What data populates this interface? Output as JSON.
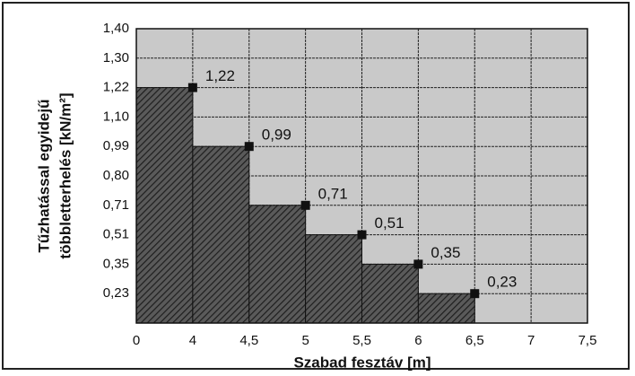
{
  "chart_data": {
    "type": "step",
    "y_label_lines": [
      "Tűzhatással egyidejű",
      "többletterhelés [kN/m²]"
    ],
    "x_label": "Szabad fesztáv [m]",
    "x": [
      4,
      4.5,
      5,
      5.5,
      6,
      6.5
    ],
    "values": [
      1.22,
      0.99,
      0.71,
      0.51,
      0.35,
      0.23
    ],
    "value_labels": [
      "1,22",
      "0,99",
      "0,71",
      "0,51",
      "0,35",
      "0,23"
    ],
    "color": "#4a4a4a",
    "xlim": [
      0,
      7.5
    ],
    "xticks": [
      0,
      4,
      {
        "value": 4.5,
        "label": "4,5"
      },
      5,
      {
        "value": 5.5,
        "label": "5,5"
      },
      6,
      {
        "value": 6.5,
        "label": "6,5"
      },
      7,
      {
        "value": 7.5,
        "label": "7,5"
      }
    ],
    "ylim": [
      0,
      1.4
    ],
    "yticks": [
      {
        "value": 0.23,
        "label": "0,23"
      },
      {
        "value": 0.35,
        "label": "0,35"
      },
      {
        "value": 0.51,
        "label": "0,51"
      },
      {
        "value": 0.71,
        "label": "0,71"
      },
      {
        "value": 0.8,
        "label": "0,80"
      },
      {
        "value": 0.99,
        "label": "0,99"
      },
      {
        "value": 1.1,
        "label": "1,10"
      },
      {
        "value": 1.22,
        "label": "1,22"
      },
      {
        "value": 1.3,
        "label": "1,30"
      },
      {
        "value": 1.4,
        "label": "1,40"
      }
    ],
    "grid": true
  }
}
